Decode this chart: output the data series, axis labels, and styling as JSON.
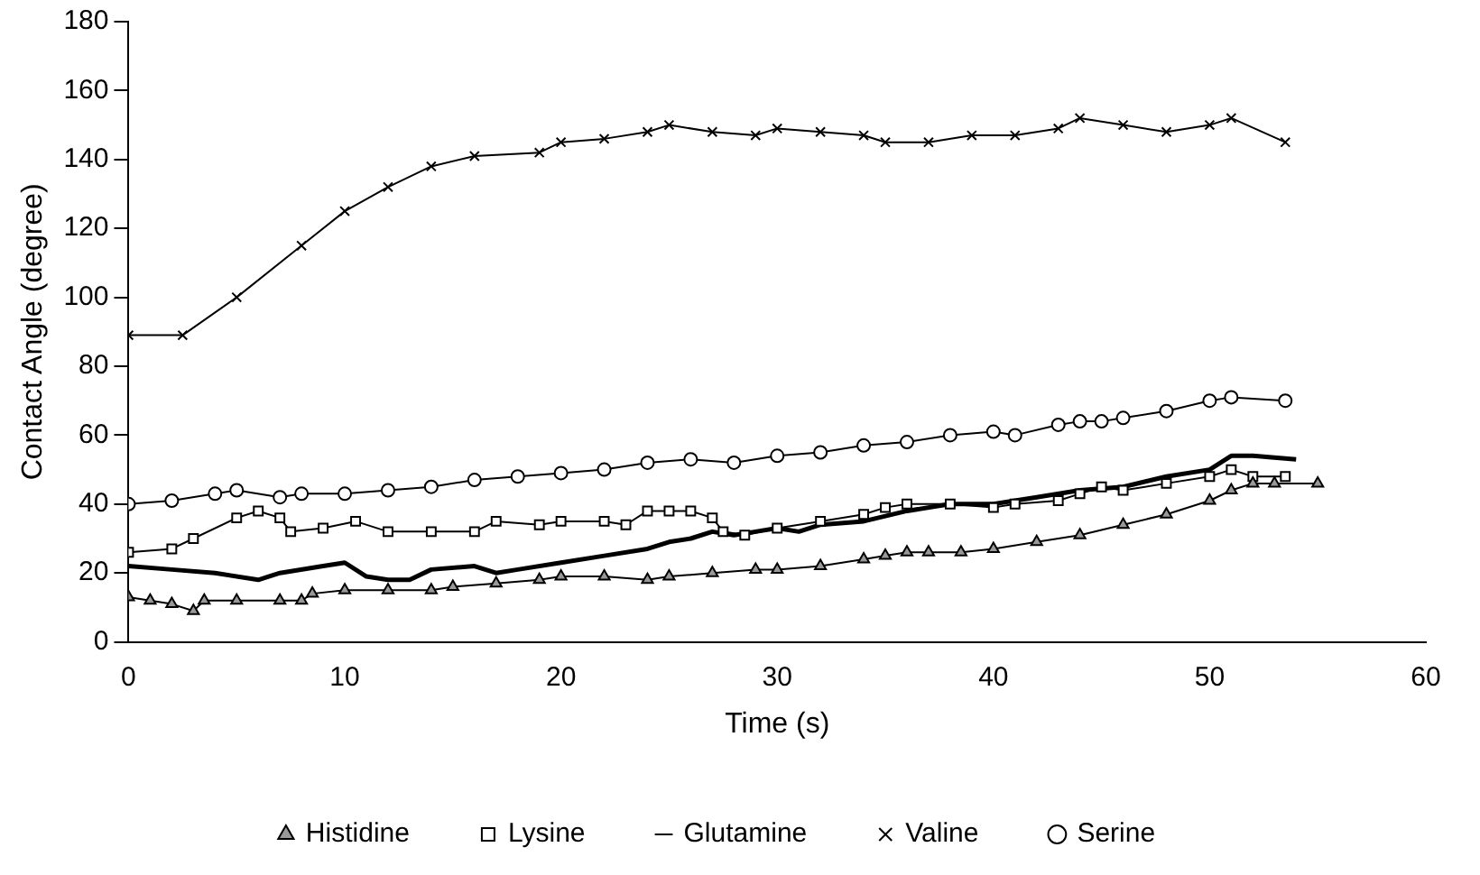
{
  "chart_data": {
    "type": "line",
    "xlabel": "Time (s)",
    "ylabel": "Contact Angle (degree)",
    "xlim": [
      0,
      60
    ],
    "xticks": [
      0,
      10,
      20,
      30,
      40,
      50,
      60
    ],
    "ylim": [
      0,
      180
    ],
    "yticks": [
      0,
      20,
      40,
      60,
      80,
      100,
      120,
      140,
      160,
      180
    ],
    "grid": false,
    "legend": "bottom",
    "series": [
      {
        "name": "Histidine",
        "color": "#000000",
        "marker": "triangle",
        "x": [
          0,
          1,
          2,
          3,
          3.5,
          5,
          7,
          8,
          8.5,
          10,
          12,
          14,
          15,
          17,
          19,
          20,
          22,
          24,
          25,
          27,
          29,
          30,
          32,
          34,
          35,
          36,
          37,
          38.5,
          40,
          42,
          44,
          46,
          48,
          50,
          51,
          52,
          53,
          55
        ],
        "values": [
          13,
          12,
          11,
          9,
          12,
          12,
          12,
          12,
          14,
          15,
          15,
          15,
          16,
          17,
          18,
          19,
          19,
          18,
          19,
          20,
          21,
          21,
          22,
          24,
          25,
          26,
          26,
          26,
          27,
          29,
          31,
          34,
          37,
          41,
          44,
          46,
          46,
          46
        ]
      },
      {
        "name": "Lysine",
        "color": "#000000",
        "marker": "square",
        "x": [
          0,
          2,
          3,
          5,
          6,
          7,
          7.5,
          9,
          10.5,
          12,
          14,
          16,
          17,
          19,
          20,
          22,
          23,
          24,
          25,
          26,
          27,
          27.5,
          28.5,
          30,
          32,
          34,
          35,
          36,
          38,
          40,
          41,
          43,
          44,
          45,
          46,
          48,
          50,
          51,
          52,
          53.5
        ],
        "values": [
          26,
          27,
          30,
          36,
          38,
          36,
          32,
          33,
          35,
          32,
          32,
          32,
          35,
          34,
          35,
          35,
          34,
          38,
          38,
          38,
          36,
          32,
          31,
          33,
          35,
          37,
          39,
          40,
          40,
          39,
          40,
          41,
          43,
          45,
          44,
          46,
          48,
          50,
          48,
          48
        ]
      },
      {
        "name": "Glutamine",
        "color": "#000000",
        "marker": "none",
        "x": [
          0,
          2,
          4,
          6,
          7,
          9,
          10,
          11,
          12,
          13,
          14,
          16,
          17,
          18,
          20,
          22,
          24,
          25,
          26,
          27,
          28,
          29,
          30,
          31,
          32,
          34,
          36,
          38,
          40,
          42,
          44,
          46,
          48,
          50,
          51,
          52,
          54
        ],
        "values": [
          22,
          21,
          20,
          18,
          20,
          22,
          23,
          19,
          18,
          18,
          21,
          22,
          20,
          21,
          23,
          25,
          27,
          29,
          30,
          32,
          31,
          32,
          33,
          32,
          34,
          35,
          38,
          40,
          40,
          42,
          44,
          45,
          48,
          50,
          54,
          54,
          53
        ]
      },
      {
        "name": "Valine",
        "color": "#000000",
        "marker": "cross",
        "x": [
          0,
          2.5,
          5,
          8,
          10,
          12,
          14,
          16,
          19,
          20,
          22,
          24,
          25,
          27,
          29,
          30,
          32,
          34,
          35,
          37,
          39,
          41,
          43,
          44,
          46,
          48,
          50,
          51,
          53.5
        ],
        "values": [
          89,
          89,
          100,
          115,
          125,
          132,
          138,
          141,
          142,
          145,
          146,
          148,
          150,
          148,
          147,
          149,
          148,
          147,
          145,
          145,
          147,
          147,
          149,
          152,
          150,
          148,
          150,
          152,
          145
        ]
      },
      {
        "name": "Serine",
        "color": "#000000",
        "marker": "circle",
        "x": [
          0,
          2,
          4,
          5,
          7,
          8,
          10,
          12,
          14,
          16,
          18,
          20,
          22,
          24,
          26,
          28,
          30,
          32,
          34,
          36,
          38,
          40,
          41,
          43,
          44,
          45,
          46,
          48,
          50,
          51,
          53.5
        ],
        "values": [
          40,
          41,
          43,
          44,
          42,
          43,
          43,
          44,
          45,
          47,
          48,
          49,
          50,
          52,
          53,
          52,
          54,
          55,
          57,
          58,
          60,
          61,
          60,
          63,
          64,
          64,
          65,
          67,
          70,
          71,
          70
        ]
      }
    ]
  }
}
